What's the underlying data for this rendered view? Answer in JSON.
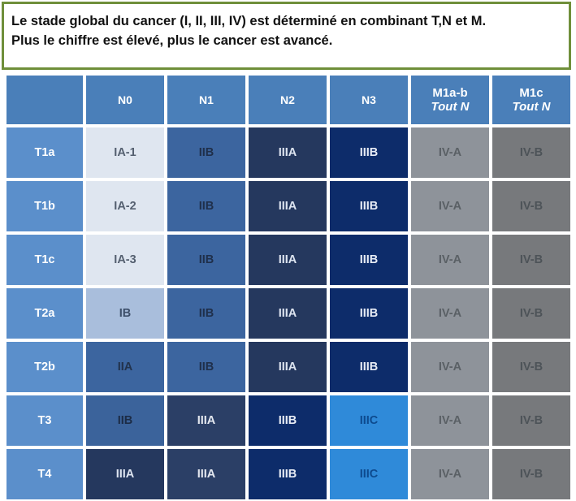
{
  "caption": {
    "line1": "Le stade global du cancer (I, II, III, IV) est déterminé en combinant T,N et M.",
    "line2": "Plus le chiffre est élevé, plus le cancer est avancé."
  },
  "table": {
    "columns": [
      {
        "label": "",
        "sub": ""
      },
      {
        "label": "N0",
        "sub": ""
      },
      {
        "label": "N1",
        "sub": ""
      },
      {
        "label": "N2",
        "sub": ""
      },
      {
        "label": "N3",
        "sub": ""
      },
      {
        "label": "M1a-b",
        "sub": "Tout N"
      },
      {
        "label": "M1c",
        "sub": "Tout N"
      }
    ],
    "rows": [
      {
        "t": "T1a",
        "cells": [
          "IA-1",
          "IIB",
          "IIIA",
          "IIIB",
          "IV-A",
          "IV-B"
        ]
      },
      {
        "t": "T1b",
        "cells": [
          "IA-2",
          "IIB",
          "IIIA",
          "IIIB",
          "IV-A",
          "IV-B"
        ]
      },
      {
        "t": "T1c",
        "cells": [
          "IA-3",
          "IIB",
          "IIIA",
          "IIIB",
          "IV-A",
          "IV-B"
        ]
      },
      {
        "t": "T2a",
        "cells": [
          "IB",
          "IIB",
          "IIIA",
          "IIIB",
          "IV-A",
          "IV-B"
        ]
      },
      {
        "t": "T2b",
        "cells": [
          "IIA",
          "IIB",
          "IIIA",
          "IIIB",
          "IV-A",
          "IV-B"
        ]
      },
      {
        "t": "T3",
        "cells": [
          "IIB",
          "IIIA",
          "IIIB",
          "IIIC",
          "IV-A",
          "IV-B"
        ]
      },
      {
        "t": "T4",
        "cells": [
          "IIIA",
          "IIIA",
          "IIIB",
          "IIIC",
          "IV-A",
          "IV-B"
        ]
      }
    ]
  },
  "colors": {
    "caption_border": "#6f8f3a",
    "header_blue": "#4a7fb9",
    "row_header_blue": "#5b8fcb",
    "stage_IA": "#dfe6f0",
    "stage_IB": "#a9bedc",
    "stage_IIA_IIB": "#3c659f",
    "stage_IIIA": "#25385e",
    "stage_IIIB": "#0d2c6a",
    "stage_IIIC": "#2f8ad9",
    "stage_IVA": "#b6b7b8",
    "stage_IVB": "#a6a7a8"
  }
}
